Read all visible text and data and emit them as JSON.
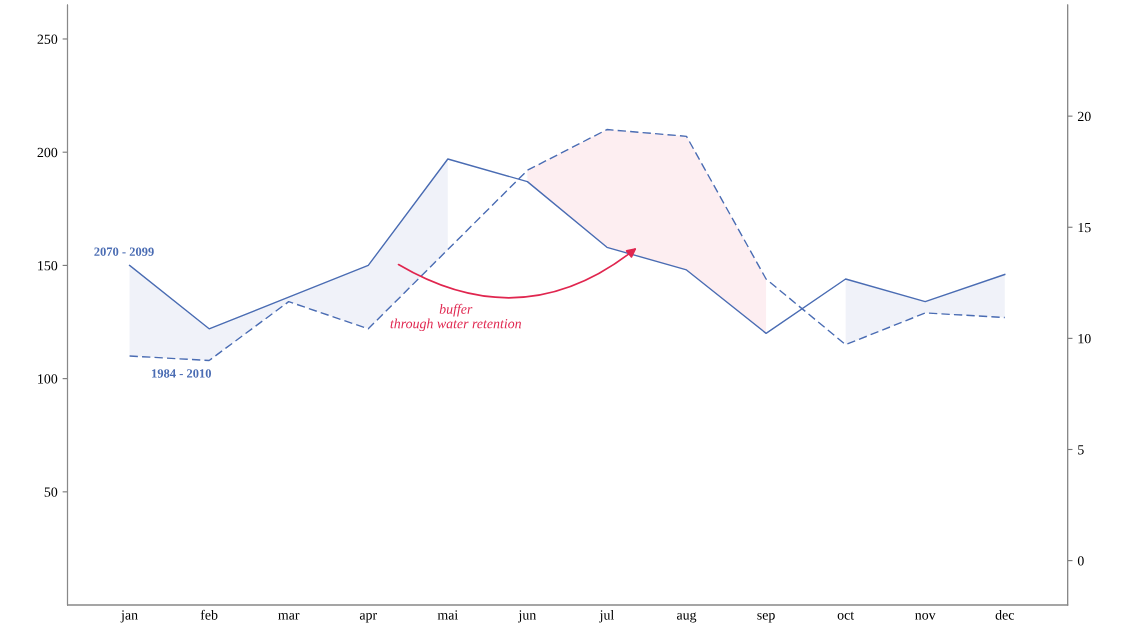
{
  "chart_data": {
    "type": "line",
    "categories": [
      "jan",
      "feb",
      "mar",
      "apr",
      "mai",
      "jun",
      "jul",
      "aug",
      "sep",
      "oct",
      "nov",
      "dec"
    ],
    "series": [
      {
        "name": "2070 - 2099",
        "color": "#4a6cb3",
        "line_style": "solid",
        "values": [
          150,
          122,
          136,
          150,
          197,
          187,
          158,
          148,
          120,
          144,
          134,
          146
        ],
        "upper": [
          150,
          122,
          136,
          150,
          197,
          null,
          null,
          null,
          null,
          144,
          134,
          146
        ],
        "lower": [
          110,
          108,
          134,
          122,
          157,
          null,
          null,
          null,
          null,
          115,
          129,
          127
        ]
      },
      {
        "name": "1984 - 2010",
        "color": "#4a6cb3",
        "line_style": "dashed",
        "values": [
          110,
          108,
          134,
          122,
          157,
          192,
          210,
          207,
          144,
          115,
          129,
          127
        ],
        "upper": [
          null,
          null,
          null,
          null,
          null,
          192,
          210,
          207,
          144,
          null,
          null,
          null
        ],
        "lower": [
          null,
          null,
          null,
          null,
          null,
          187,
          158,
          148,
          120,
          null,
          null,
          null
        ]
      }
    ],
    "colors": [
      "#3f5fae",
      "#e0264f"
    ],
    "ylim": [
      0,
      265
    ],
    "yticks": [
      50,
      100,
      150,
      200,
      250
    ],
    "y2lim": [
      -2,
      25
    ],
    "y2ticks": [
      0,
      5,
      10,
      15,
      20
    ],
    "annotations": [
      "buffer\nthrough water retention"
    ],
    "grid": false,
    "legend": false,
    "marker": "none"
  }
}
